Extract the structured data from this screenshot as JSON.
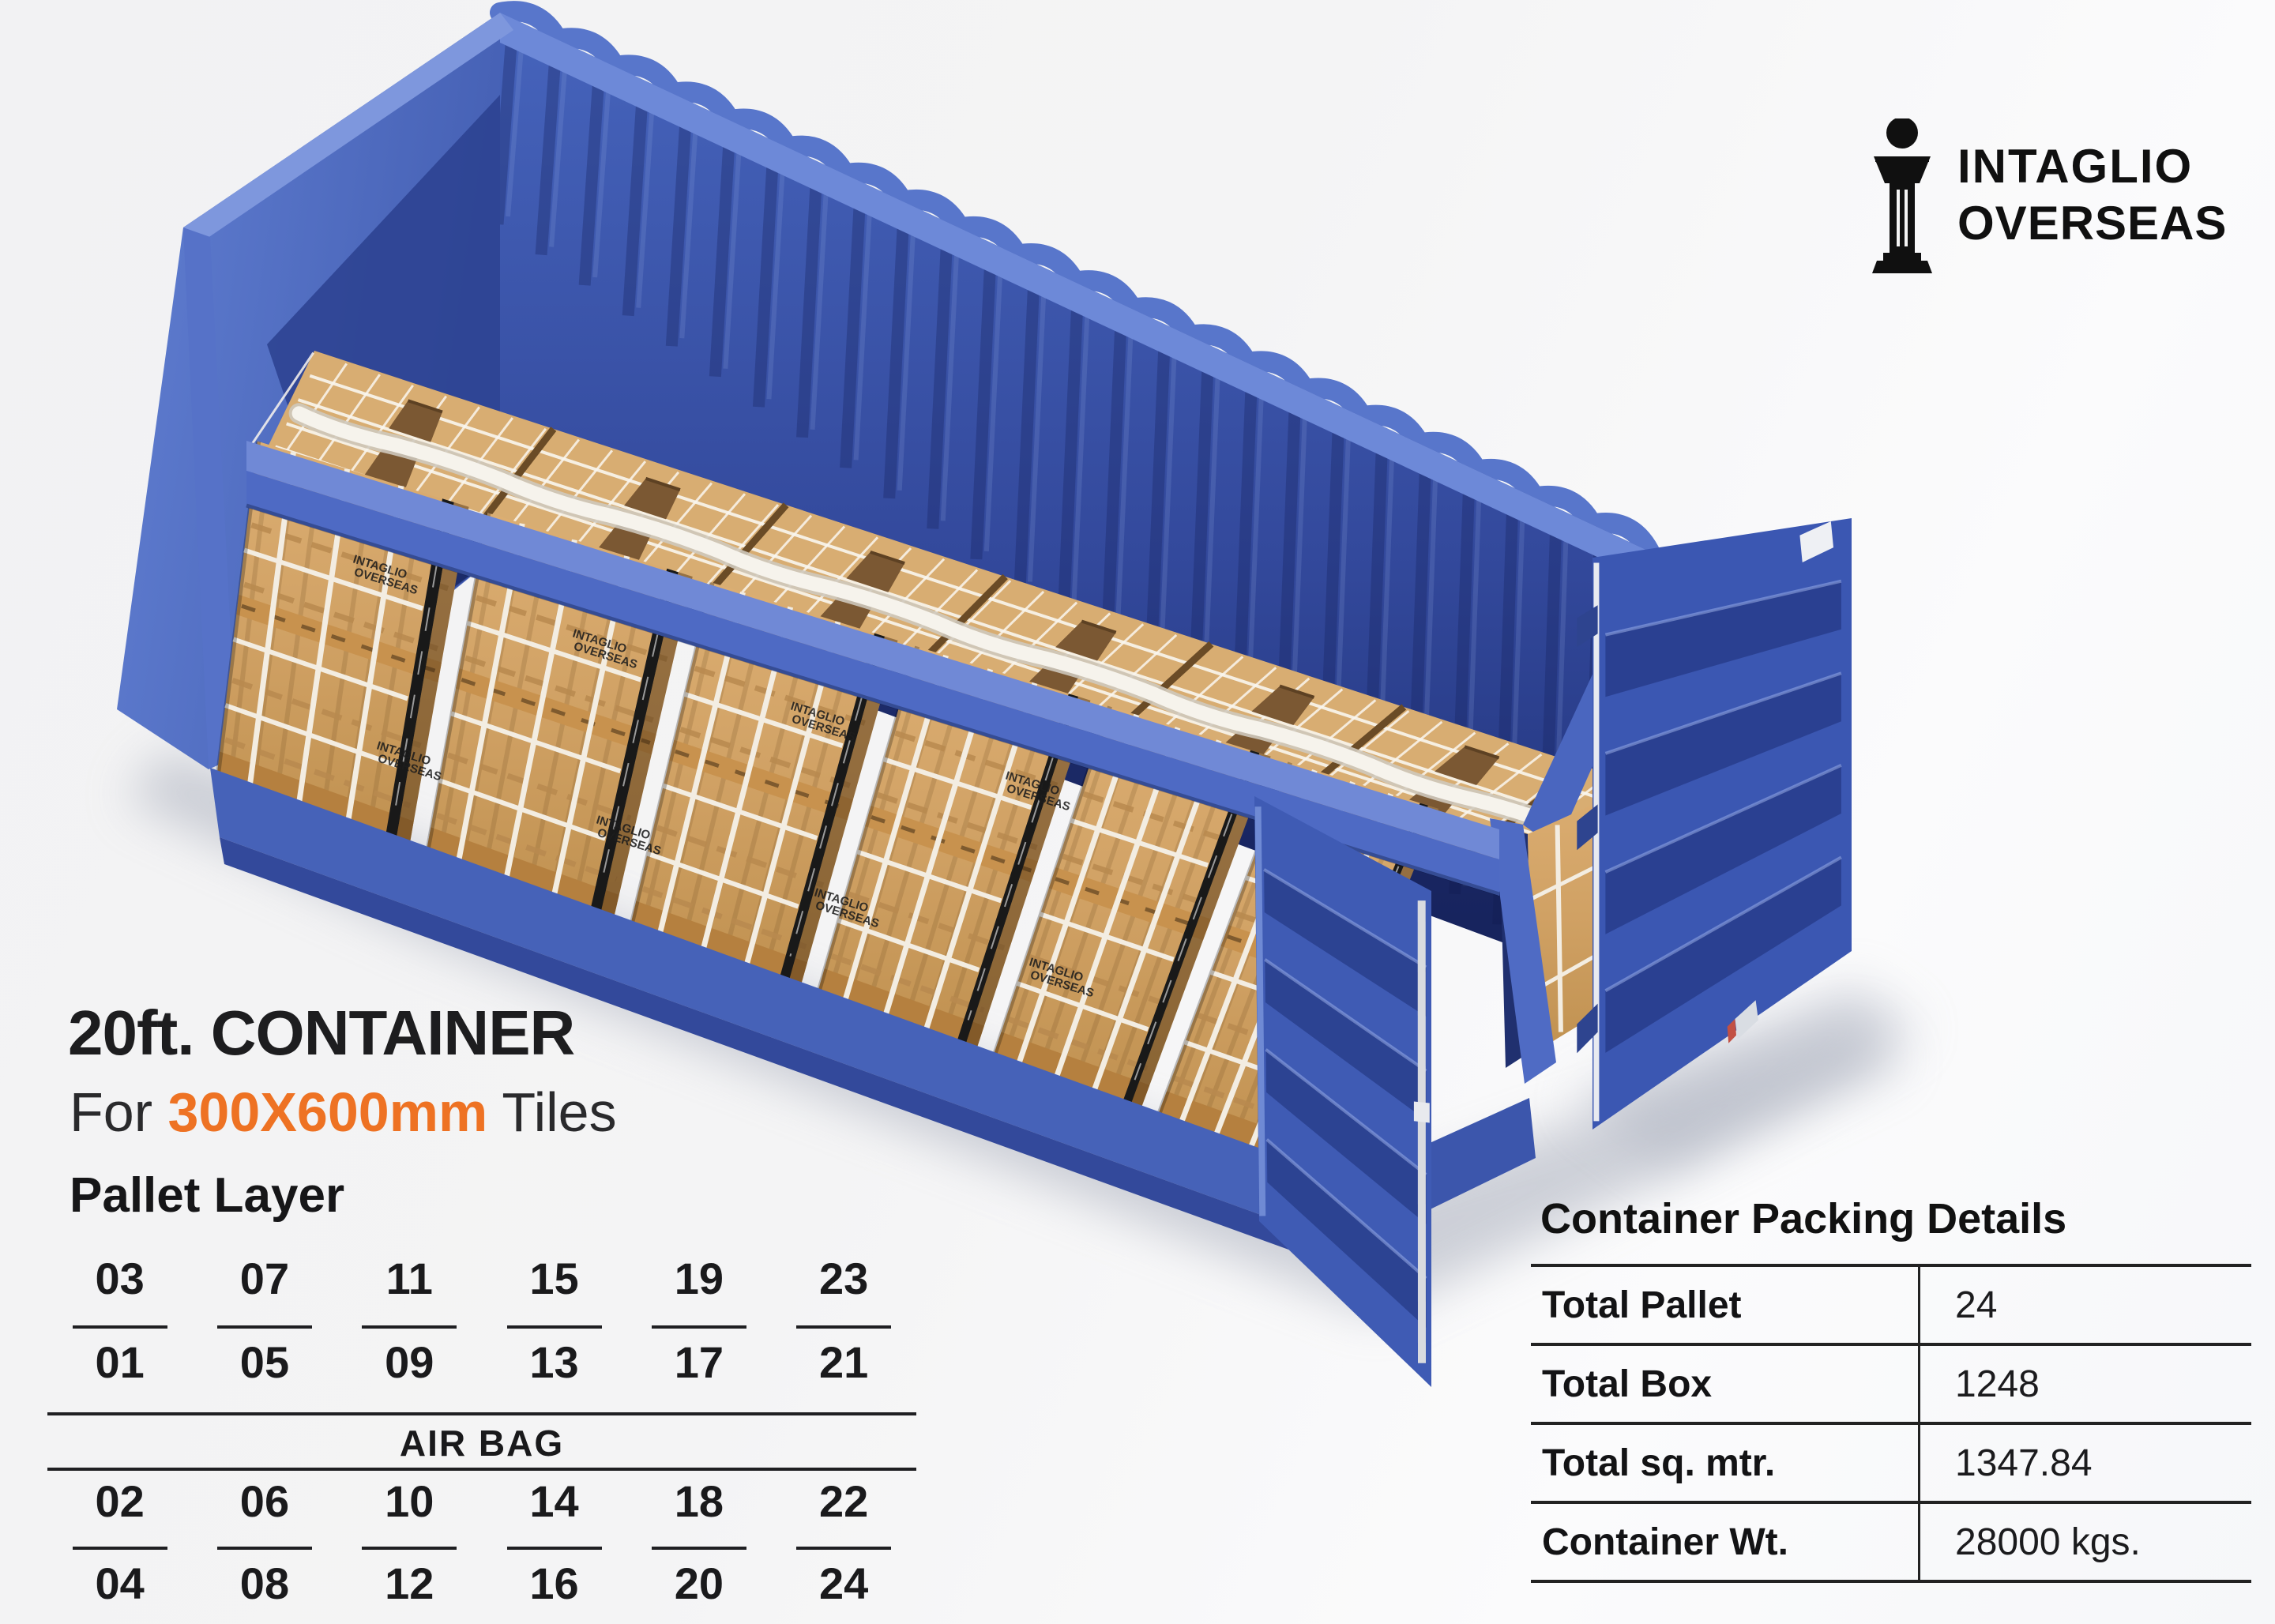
{
  "logo": {
    "line1": "INTAGLIO",
    "line2": "OVERSEAS"
  },
  "title": {
    "line1": "20ft. CONTAINER",
    "line2_prefix": "For ",
    "line2_highlight": "300X600mm",
    "line2_suffix": " Tiles"
  },
  "pallet_layer": {
    "heading": "Pallet Layer",
    "airbag_label": "AIR BAG",
    "rows": {
      "top": [
        "03",
        "07",
        "11",
        "15",
        "19",
        "23"
      ],
      "upper": [
        "01",
        "05",
        "09",
        "13",
        "17",
        "21"
      ],
      "lower": [
        "02",
        "06",
        "10",
        "14",
        "18",
        "22"
      ],
      "bottom": [
        "04",
        "08",
        "12",
        "16",
        "20",
        "24"
      ]
    }
  },
  "packing_details": {
    "title": "Container Packing Details",
    "rows": [
      {
        "label": "Total Pallet",
        "value": "24"
      },
      {
        "label": "Total Box",
        "value": "1248"
      },
      {
        "label": "Total sq. mtr.",
        "value": "1347.84"
      },
      {
        "label": "Container Wt.",
        "value": "28000 kgs."
      }
    ]
  },
  "colors": {
    "accent_orange": "#ee7223",
    "container_blue": "#4a66bf",
    "container_blue_dark": "#2c418f",
    "wood": "#d2a268",
    "strap_white": "#f3ede2",
    "text_dark": "#1d1d1f"
  }
}
